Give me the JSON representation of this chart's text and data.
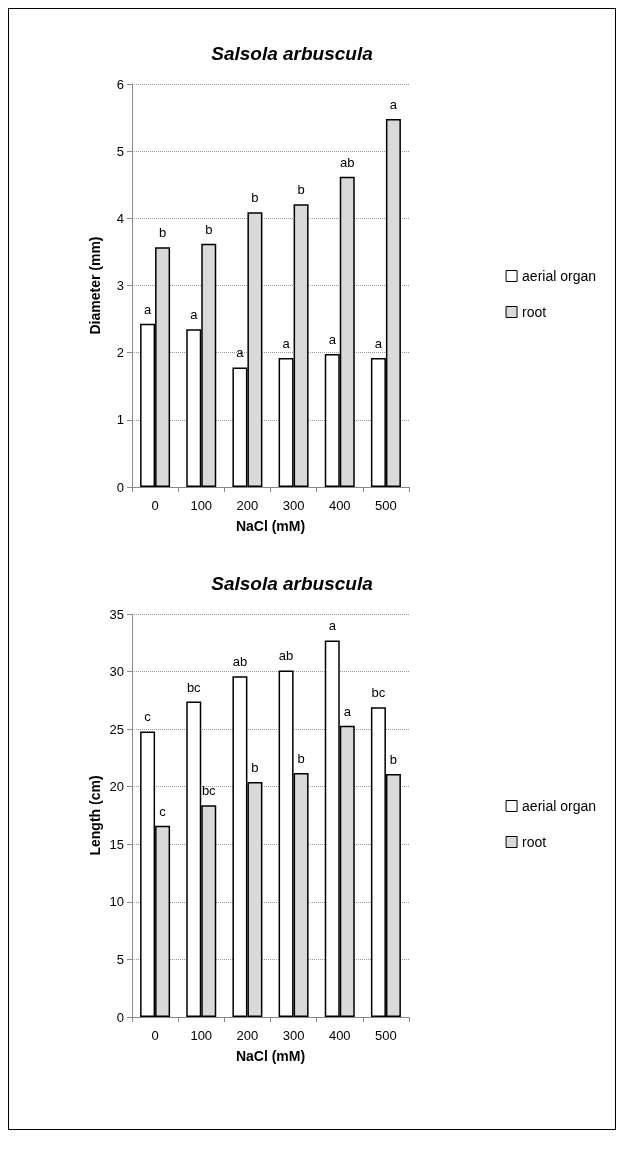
{
  "chart_data": [
    {
      "type": "bar",
      "title": "Salsola arbuscula",
      "xlabel": "NaCl (mM)",
      "ylabel": "Diameter (mm)",
      "categories": [
        "0",
        "100",
        "200",
        "300",
        "400",
        "500"
      ],
      "series": [
        {
          "name": "aerial organ",
          "color": "#ffffff",
          "values": [
            2.43,
            2.35,
            1.78,
            1.92,
            1.98,
            1.92
          ],
          "value_labels": [
            "a",
            "a",
            "a",
            "a",
            "a",
            "a"
          ]
        },
        {
          "name": "root",
          "color": "#d9d9d9",
          "values": [
            3.57,
            3.62,
            4.09,
            4.21,
            4.62,
            5.48
          ],
          "value_labels": [
            "b",
            "b",
            "b",
            "b",
            "ab",
            "a"
          ]
        }
      ],
      "ylim": [
        0,
        6
      ],
      "yticks": [
        0,
        1,
        2,
        3,
        4,
        5,
        6
      ],
      "grid": "y",
      "legend": "right"
    },
    {
      "type": "bar",
      "title": "Salsola arbuscula",
      "xlabel": "NaCl (mM)",
      "ylabel": "Length (cm)",
      "categories": [
        "0",
        "100",
        "200",
        "300",
        "400",
        "500"
      ],
      "series": [
        {
          "name": "aerial organ",
          "color": "#ffffff",
          "values": [
            24.8,
            27.4,
            29.6,
            30.1,
            32.7,
            26.9
          ],
          "value_labels": [
            "c",
            "bc",
            "ab",
            "ab",
            "a",
            "bc"
          ]
        },
        {
          "name": "root",
          "color": "#d9d9d9",
          "values": [
            16.6,
            18.4,
            20.4,
            21.2,
            25.3,
            21.1
          ],
          "value_labels": [
            "c",
            "bc",
            "b",
            "b",
            "a",
            "b"
          ]
        }
      ],
      "ylim": [
        0,
        35
      ],
      "yticks": [
        0,
        5,
        10,
        15,
        20,
        25,
        30,
        35
      ],
      "grid": "y",
      "legend": "right"
    }
  ]
}
